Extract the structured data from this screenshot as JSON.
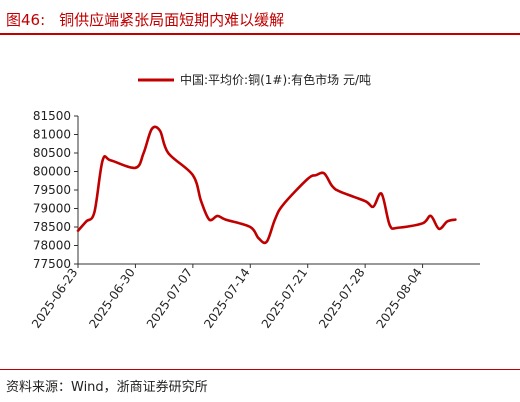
{
  "figure": {
    "number": "图46:",
    "title": "铜供应端紧张局面短期内难以缓解",
    "source": "资料来源：Wind，浙商证券研究所"
  },
  "colors": {
    "accent": "#c00000",
    "series": "#c00000"
  },
  "chart_data": {
    "type": "line",
    "title": "",
    "xlabel": "",
    "ylabel": "",
    "ylim": [
      77500,
      81500
    ],
    "yticks": [
      77500,
      78000,
      78500,
      79000,
      79500,
      80000,
      80500,
      81000,
      81500
    ],
    "xlim": [
      "2025-06-23",
      "2025-08-11"
    ],
    "xticks": [
      "2025-06-23",
      "2025-06-30",
      "2025-07-07",
      "2025-07-14",
      "2025-07-21",
      "2025-07-28",
      "2025-08-04"
    ],
    "grid": false,
    "legend": "top",
    "series": [
      {
        "name": "中国:平均价:铜(1#):有色市场 元/吨",
        "x": [
          "2025-06-23",
          "2025-06-24",
          "2025-06-25",
          "2025-06-26",
          "2025-06-27",
          "2025-06-30",
          "2025-07-01",
          "2025-07-02",
          "2025-07-03",
          "2025-07-04",
          "2025-07-07",
          "2025-07-08",
          "2025-07-09",
          "2025-07-10",
          "2025-07-11",
          "2025-07-14",
          "2025-07-15",
          "2025-07-16",
          "2025-07-17",
          "2025-07-18",
          "2025-07-21",
          "2025-07-22",
          "2025-07-23",
          "2025-07-24",
          "2025-07-25",
          "2025-07-28",
          "2025-07-29",
          "2025-07-30",
          "2025-07-31",
          "2025-08-01",
          "2025-08-04",
          "2025-08-05",
          "2025-08-06",
          "2025-08-07",
          "2025-08-08"
        ],
        "values": [
          78400,
          78650,
          78900,
          80300,
          80300,
          80100,
          80500,
          81150,
          81100,
          80500,
          79900,
          79200,
          78700,
          78800,
          78700,
          78500,
          78200,
          78100,
          78700,
          79100,
          79800,
          79900,
          79950,
          79600,
          79450,
          79200,
          79050,
          79400,
          78550,
          78480,
          78600,
          78800,
          78450,
          78650,
          78700
        ]
      }
    ]
  }
}
